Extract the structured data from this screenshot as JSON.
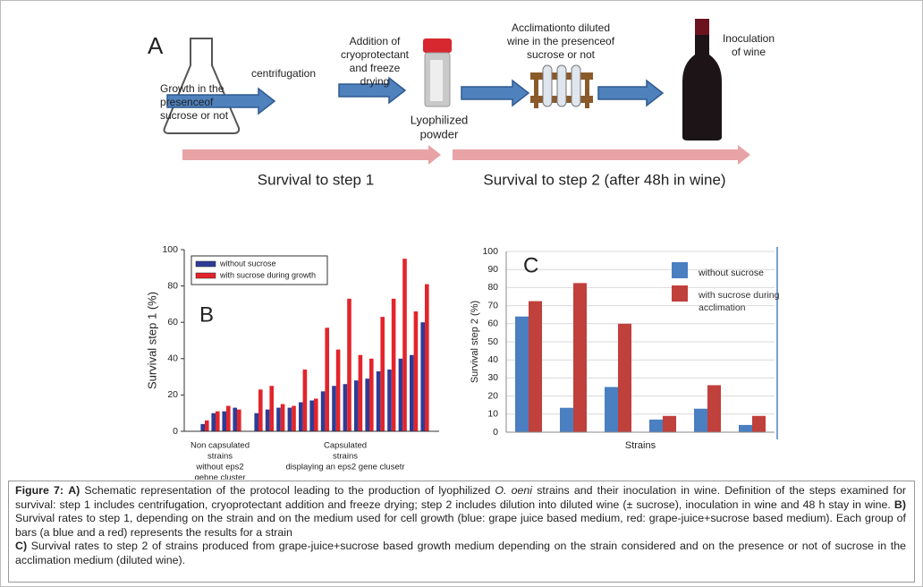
{
  "diagram": {
    "panel_label": "A",
    "growth": [
      "Growth in the",
      "presenceof",
      "sucrose or not"
    ],
    "centrifugation": [
      "centrifugation"
    ],
    "addition": [
      "Addition of",
      "cryoprotectant",
      "and freeze",
      "drying"
    ],
    "lyophilized": [
      "Lyophilized",
      "powder"
    ],
    "acclimation": [
      "Acclimationto diluted",
      "wine in the presenceof",
      "sucrose or not"
    ],
    "inoculation": [
      "Inoculation",
      "of wine"
    ],
    "survival1": "Survival to step 1",
    "survival2": "Survival to step 2 (after 48h in wine)"
  },
  "chart_data": [
    {
      "type": "bar",
      "panel_label": "B",
      "ylabel": "Survival step 1 (%)",
      "ylim": [
        0,
        100
      ],
      "yticks": [
        0,
        20,
        40,
        60,
        80,
        100
      ],
      "grid": false,
      "legend": "upper left",
      "categories": [
        null,
        null,
        null,
        null,
        null,
        null,
        null,
        null,
        null,
        null,
        null,
        null,
        null,
        null,
        null,
        null,
        null,
        null,
        null,
        null
      ],
      "series": [
        {
          "name": "without sucrose",
          "color": "#2e3c96",
          "values": [
            4,
            10,
            11,
            13,
            10,
            12,
            13,
            13,
            16,
            17,
            22,
            25,
            26,
            28,
            29,
            33,
            34,
            40,
            42,
            60
          ]
        },
        {
          "name": "with sucrose during growth",
          "color": "#e3242b",
          "values": [
            6,
            11,
            14,
            12,
            23,
            25,
            15,
            14,
            34,
            18,
            57,
            45,
            73,
            42,
            40,
            63,
            73,
            95,
            66,
            81
          ]
        }
      ],
      "group_labels": [
        [
          "Non capsulated",
          "strains",
          "without eps2",
          "gebne cluster"
        ],
        [
          "Capsulated",
          "strains",
          "displaying an eps2 gene clusetr"
        ]
      ]
    },
    {
      "type": "bar",
      "panel_label": "C",
      "ylabel": "Survival step 2 (%)",
      "xlabel": "Strains",
      "ylim": [
        0,
        100
      ],
      "yticks": [
        0,
        10,
        20,
        30,
        40,
        50,
        60,
        70,
        80,
        90,
        100
      ],
      "grid": true,
      "legend": "upper right",
      "categories": [
        null,
        null,
        null,
        null,
        null,
        null
      ],
      "series": [
        {
          "name": "without sucrose",
          "color": "#4a7fc1",
          "values": [
            64,
            13.5,
            25,
            7,
            13,
            4
          ]
        },
        {
          "name": "with sucrose during acclimation",
          "color": "#c0403c",
          "values": [
            72.5,
            82.5,
            60,
            9,
            26,
            9
          ]
        }
      ]
    }
  ],
  "caption": {
    "figure": "Figure 7:",
    "a_label": "A)",
    "a_text_1": "Schematic representation of the protocol leading to the production of lyophilized",
    "a_species": "O. oeni",
    "a_text_2": "strains and their inoculation in wine. Definition of the steps examined for survival: step 1 includes centrifugation, cryoprotectant addition and freeze drying; step 2 includes dilution into diluted wine (± sucrose), inoculation in wine and 48 h stay in wine.",
    "b_label": "B)",
    "b_text": "Survival rates to step 1, depending on the strain and on the medium used for cell growth (blue: grape juice based medium, red: grape-juice+sucrose based medium). Each group of bars (a blue and a red) represents the results for a strain",
    "c_label": "C)",
    "c_text": "Survival rates to step 2 of strains produced from grape-juice+sucrose based growth medium depending on the strain considered and on the presence or not of sucrose in the acclimation medium (diluted wine)."
  }
}
